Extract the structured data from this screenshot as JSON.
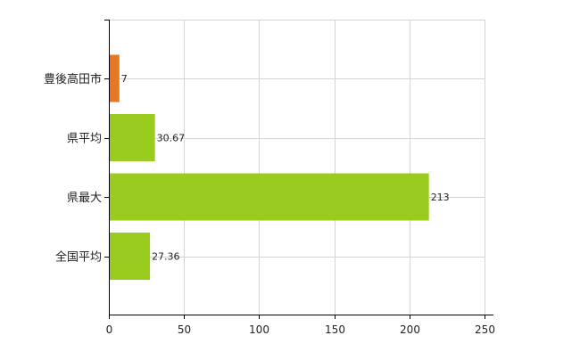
{
  "chart_data": {
    "type": "bar",
    "orientation": "horizontal",
    "categories": [
      "豊後高田市",
      "県平均",
      "県最大",
      "全国平均"
    ],
    "values": [
      7,
      30.67,
      213,
      27.36
    ],
    "data_labels": [
      "7",
      "30.67",
      "213",
      "27.36"
    ],
    "bar_colors": [
      "#e87722",
      "#99cc1f",
      "#99cc1f",
      "#99cc1f"
    ],
    "xlim": [
      0,
      250
    ],
    "x_ticks": [
      0,
      50,
      100,
      150,
      200,
      250
    ],
    "x_tick_labels": [
      "0",
      "50",
      "100",
      "150",
      "200",
      "250"
    ],
    "grid": true,
    "legend": "none",
    "title": "",
    "xlabel": "",
    "ylabel": ""
  }
}
